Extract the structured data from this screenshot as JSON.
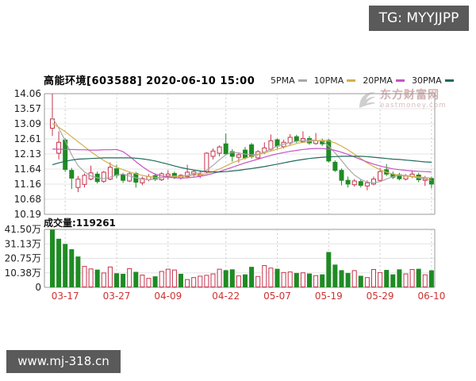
{
  "badges": {
    "tg": "TG: MYYJJPP",
    "site": "www.mj-318.cn"
  },
  "header": {
    "title": "高能环境[603588] 2020-06-10 15:00"
  },
  "legend": [
    {
      "label": "5PMA",
      "color": "#a8a8a8"
    },
    {
      "label": "10PMA",
      "color": "#d2b04c"
    },
    {
      "label": "20PMA",
      "color": "#c553c5"
    },
    {
      "label": "30PMA",
      "color": "#1e6a5a"
    }
  ],
  "watermark": {
    "line1": "东方财富网",
    "line2": "eastmoney.com"
  },
  "volume_label": "成交量:119261",
  "colors": {
    "up_red": "#c5334d",
    "down_green": "#1f8b24",
    "ma5": "#a8a8a8",
    "ma10": "#d2b04c",
    "ma20": "#c553c5",
    "ma30": "#1e6a5a",
    "date_red": "#cc3333",
    "grid": "#e4e4e4",
    "border": "#999999",
    "axis_text": "#222222",
    "badge_bg": "#5a5a5a"
  },
  "chart_data": {
    "type": "candlestick+volume",
    "title": "高能环境[603588] 2020-06-10 15:00",
    "current_volume_hands": "119261",
    "price_range": [
      10.19,
      14.06
    ],
    "volume_range_wan": [
      0,
      41.5
    ],
    "grid": true,
    "y_axis_price": [
      14.06,
      13.57,
      13.09,
      12.61,
      12.13,
      11.64,
      11.16,
      10.68,
      10.19
    ],
    "y_axis_volume": [
      "41.50万",
      "31.13万",
      "20.75万",
      "10.38万",
      "0"
    ],
    "x_ticks": [
      {
        "label": "03-17",
        "i": 2
      },
      {
        "label": "03-27",
        "i": 10
      },
      {
        "label": "04-09",
        "i": 18
      },
      {
        "label": "04-22",
        "i": 27
      },
      {
        "label": "05-07",
        "i": 35
      },
      {
        "label": "05-19",
        "i": 43
      },
      {
        "label": "05-29",
        "i": 51
      },
      {
        "label": "06-10",
        "i": 59
      }
    ],
    "candles": [
      [
        12.95,
        14.06,
        12.7,
        13.25,
        "u"
      ],
      [
        12.15,
        12.85,
        11.95,
        12.5,
        "u"
      ],
      [
        12.57,
        12.62,
        11.55,
        11.63,
        "d"
      ],
      [
        11.6,
        11.68,
        11.0,
        11.35,
        "d"
      ],
      [
        11.05,
        11.42,
        10.9,
        11.32,
        "u"
      ],
      [
        11.15,
        11.5,
        11.05,
        11.44,
        "u"
      ],
      [
        11.32,
        11.75,
        11.28,
        11.52,
        "u"
      ],
      [
        11.48,
        11.56,
        11.18,
        11.24,
        "d"
      ],
      [
        11.25,
        11.58,
        11.2,
        11.54,
        "u"
      ],
      [
        11.32,
        11.86,
        11.28,
        11.7,
        "u"
      ],
      [
        11.65,
        11.78,
        11.35,
        11.44,
        "d"
      ],
      [
        11.45,
        11.52,
        11.2,
        11.28,
        "d"
      ],
      [
        11.26,
        11.54,
        11.22,
        11.49,
        "u"
      ],
      [
        11.5,
        11.55,
        11.05,
        11.22,
        "d"
      ],
      [
        11.2,
        11.4,
        11.12,
        11.34,
        "u"
      ],
      [
        11.3,
        11.48,
        11.25,
        11.4,
        "u"
      ],
      [
        11.43,
        11.5,
        11.26,
        11.31,
        "d"
      ],
      [
        11.3,
        11.54,
        11.26,
        11.49,
        "u"
      ],
      [
        11.42,
        11.6,
        11.3,
        11.48,
        "u"
      ],
      [
        11.5,
        11.56,
        11.32,
        11.38,
        "d"
      ],
      [
        11.36,
        11.48,
        11.3,
        11.44,
        "u"
      ],
      [
        11.4,
        11.78,
        11.36,
        11.54,
        "u"
      ],
      [
        11.48,
        11.62,
        11.4,
        11.56,
        "u"
      ],
      [
        11.42,
        11.6,
        11.35,
        11.48,
        "u"
      ],
      [
        11.55,
        12.18,
        11.5,
        12.15,
        "u"
      ],
      [
        12.05,
        12.3,
        11.95,
        12.22,
        "u"
      ],
      [
        12.15,
        12.4,
        12.05,
        12.35,
        "u"
      ],
      [
        12.45,
        12.78,
        12.1,
        12.13,
        "d"
      ],
      [
        12.2,
        12.28,
        11.88,
        12.05,
        "d"
      ],
      [
        12.02,
        12.18,
        11.85,
        12.1,
        "u"
      ],
      [
        12.25,
        12.35,
        11.95,
        12.0,
        "d"
      ],
      [
        12.42,
        12.48,
        11.98,
        12.04,
        "d"
      ],
      [
        12.0,
        12.25,
        11.96,
        12.2,
        "u"
      ],
      [
        12.18,
        12.5,
        12.12,
        12.32,
        "u"
      ],
      [
        12.28,
        12.75,
        12.22,
        12.55,
        "u"
      ],
      [
        12.58,
        12.62,
        12.3,
        12.38,
        "d"
      ],
      [
        12.36,
        12.58,
        12.3,
        12.5,
        "u"
      ],
      [
        12.48,
        12.76,
        12.42,
        12.66,
        "u"
      ],
      [
        12.68,
        12.74,
        12.48,
        12.55,
        "d"
      ],
      [
        12.52,
        12.85,
        12.48,
        12.62,
        "u"
      ],
      [
        12.62,
        12.7,
        12.42,
        12.48,
        "d"
      ],
      [
        12.46,
        12.8,
        12.42,
        12.55,
        "u"
      ],
      [
        12.55,
        12.62,
        12.38,
        12.45,
        "d"
      ],
      [
        12.56,
        12.6,
        11.85,
        11.9,
        "d"
      ],
      [
        11.86,
        11.92,
        11.55,
        11.6,
        "d"
      ],
      [
        11.6,
        11.66,
        11.12,
        11.28,
        "d"
      ],
      [
        11.28,
        11.4,
        11.05,
        11.16,
        "d"
      ],
      [
        11.14,
        11.32,
        11.08,
        11.26,
        "u"
      ],
      [
        11.24,
        11.3,
        11.05,
        11.12,
        "d"
      ],
      [
        11.1,
        11.28,
        10.96,
        11.2,
        "u"
      ],
      [
        11.16,
        11.4,
        11.12,
        11.32,
        "u"
      ],
      [
        11.28,
        11.68,
        11.24,
        11.56,
        "u"
      ],
      [
        11.62,
        11.8,
        11.42,
        11.48,
        "d"
      ],
      [
        11.48,
        11.56,
        11.32,
        11.38,
        "d"
      ],
      [
        11.46,
        11.52,
        11.28,
        11.33,
        "d"
      ],
      [
        11.32,
        11.48,
        11.28,
        11.42,
        "u"
      ],
      [
        11.4,
        11.6,
        11.35,
        11.48,
        "u"
      ],
      [
        11.45,
        11.52,
        11.22,
        11.3,
        "d"
      ],
      [
        11.28,
        11.42,
        11.1,
        11.36,
        "u"
      ],
      [
        11.34,
        11.4,
        11.02,
        11.16,
        "d"
      ]
    ],
    "volumes": [
      [
        41.0,
        "g"
      ],
      [
        34.5,
        "g"
      ],
      [
        30.8,
        "g"
      ],
      [
        27.0,
        "g"
      ],
      [
        21.8,
        "g"
      ],
      [
        15.0,
        "r"
      ],
      [
        13.2,
        "r"
      ],
      [
        12.4,
        "g"
      ],
      [
        10.3,
        "r"
      ],
      [
        14.6,
        "r"
      ],
      [
        9.8,
        "g"
      ],
      [
        9.4,
        "g"
      ],
      [
        13.4,
        "r"
      ],
      [
        10.8,
        "g"
      ],
      [
        8.8,
        "r"
      ],
      [
        6.4,
        "r"
      ],
      [
        7.6,
        "g"
      ],
      [
        11.4,
        "r"
      ],
      [
        13.0,
        "r"
      ],
      [
        12.4,
        "r"
      ],
      [
        9.4,
        "g"
      ],
      [
        5.6,
        "r"
      ],
      [
        7.0,
        "r"
      ],
      [
        8.0,
        "r"
      ],
      [
        8.6,
        "r"
      ],
      [
        9.6,
        "r"
      ],
      [
        13.0,
        "r"
      ],
      [
        12.0,
        "g"
      ],
      [
        12.6,
        "g"
      ],
      [
        8.2,
        "r"
      ],
      [
        9.0,
        "g"
      ],
      [
        14.4,
        "g"
      ],
      [
        7.8,
        "r"
      ],
      [
        15.6,
        "r"
      ],
      [
        13.8,
        "r"
      ],
      [
        13.0,
        "g"
      ],
      [
        10.6,
        "r"
      ],
      [
        11.0,
        "r"
      ],
      [
        10.0,
        "g"
      ],
      [
        10.4,
        "r"
      ],
      [
        9.6,
        "g"
      ],
      [
        8.4,
        "r"
      ],
      [
        9.0,
        "g"
      ],
      [
        25.0,
        "g"
      ],
      [
        16.0,
        "g"
      ],
      [
        12.0,
        "g"
      ],
      [
        10.0,
        "g"
      ],
      [
        12.0,
        "r"
      ],
      [
        8.0,
        "g"
      ],
      [
        7.0,
        "r"
      ],
      [
        12.8,
        "r"
      ],
      [
        10.6,
        "r"
      ],
      [
        12.2,
        "g"
      ],
      [
        9.0,
        "g"
      ],
      [
        12.6,
        "g"
      ],
      [
        9.6,
        "r"
      ],
      [
        12.8,
        "r"
      ],
      [
        13.0,
        "g"
      ],
      [
        9.0,
        "r"
      ],
      [
        11.9,
        "g"
      ]
    ],
    "ma": {
      "p5": [
        13.3,
        12.95,
        12.55,
        12.1,
        11.75,
        11.55,
        11.42,
        11.36,
        11.33,
        11.38,
        11.45,
        11.48,
        11.42,
        11.36,
        11.32,
        11.3,
        11.32,
        11.36,
        11.4,
        11.42,
        11.41,
        11.44,
        11.5,
        11.52,
        11.6,
        11.76,
        11.94,
        12.1,
        12.18,
        12.16,
        12.12,
        12.1,
        12.12,
        12.18,
        12.28,
        12.38,
        12.44,
        12.49,
        12.53,
        12.56,
        12.57,
        12.56,
        12.54,
        12.38,
        12.16,
        11.92,
        11.66,
        11.45,
        11.31,
        11.22,
        11.2,
        11.24,
        11.32,
        11.4,
        11.45,
        11.44,
        11.4,
        11.36,
        11.32,
        11.28
      ],
      "p10": [
        13.1,
        12.98,
        12.84,
        12.68,
        12.52,
        12.36,
        12.2,
        12.05,
        11.92,
        11.8,
        11.7,
        11.62,
        11.55,
        11.49,
        11.44,
        11.4,
        11.38,
        11.37,
        11.38,
        11.4,
        11.41,
        11.42,
        11.44,
        11.46,
        11.5,
        11.56,
        11.64,
        11.74,
        11.84,
        11.92,
        11.99,
        12.05,
        12.1,
        12.16,
        12.22,
        12.28,
        12.34,
        12.4,
        12.46,
        12.5,
        12.53,
        12.55,
        12.56,
        12.54,
        12.48,
        12.38,
        12.26,
        12.12,
        11.98,
        11.84,
        11.72,
        11.62,
        11.54,
        11.48,
        11.44,
        11.42,
        11.4,
        11.39,
        11.37,
        11.35
      ],
      "p20": [
        12.28,
        12.28,
        12.27,
        12.27,
        12.26,
        12.26,
        12.25,
        12.25,
        12.26,
        12.26,
        12.27,
        12.2,
        12.05,
        11.88,
        11.72,
        11.58,
        11.48,
        11.42,
        11.38,
        11.36,
        11.35,
        11.36,
        11.38,
        11.41,
        11.45,
        11.5,
        11.56,
        11.63,
        11.7,
        11.77,
        11.84,
        11.9,
        11.96,
        12.02,
        12.08,
        12.13,
        12.17,
        12.21,
        12.24,
        12.27,
        12.29,
        12.3,
        12.3,
        12.28,
        12.24,
        12.18,
        12.11,
        12.03,
        11.95,
        11.87,
        11.8,
        11.74,
        11.69,
        11.65,
        11.62,
        11.6,
        11.58,
        11.57,
        11.56,
        11.55
      ],
      "p30": [
        11.78,
        11.84,
        11.89,
        11.93,
        11.96,
        11.97,
        11.98,
        11.99,
        12.0,
        12.0,
        12.0,
        12.0,
        12.0,
        11.99,
        11.97,
        11.94,
        11.9,
        11.85,
        11.8,
        11.74,
        11.69,
        11.65,
        11.61,
        11.58,
        11.56,
        11.55,
        11.55,
        11.56,
        11.58,
        11.6,
        11.63,
        11.66,
        11.69,
        11.72,
        11.76,
        11.8,
        11.84,
        11.88,
        11.92,
        11.95,
        11.98,
        12.0,
        12.02,
        12.03,
        12.04,
        12.05,
        12.05,
        12.05,
        12.05,
        12.04,
        12.02,
        12.0,
        11.98,
        11.96,
        11.95,
        11.93,
        11.91,
        11.89,
        11.87,
        11.86
      ]
    }
  }
}
